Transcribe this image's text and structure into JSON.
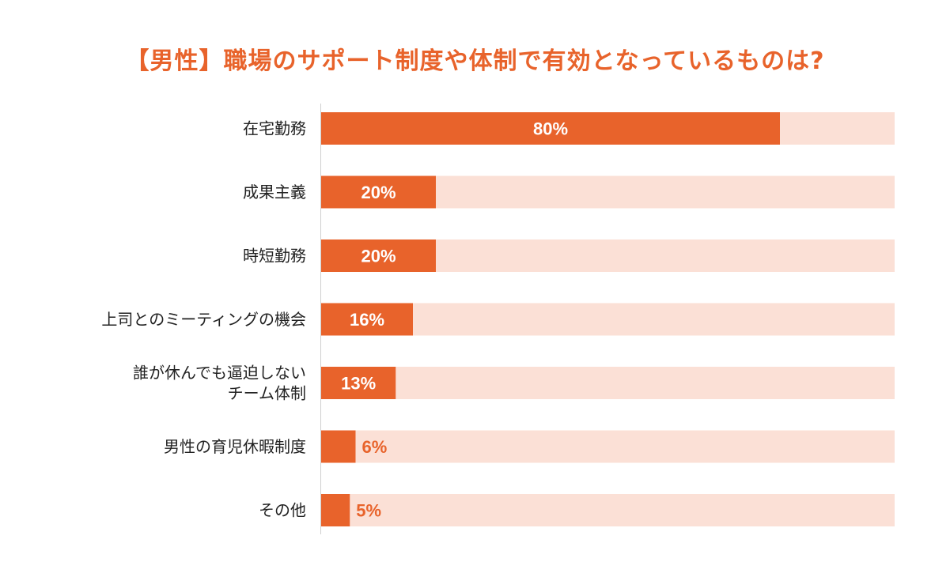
{
  "chart_data": {
    "type": "bar",
    "orientation": "horizontal",
    "title": "【男性】職場のサポート制度や体制で有効となっているものは?",
    "categories": [
      [
        "在宅勤務"
      ],
      [
        "成果主義"
      ],
      [
        "時短勤務"
      ],
      [
        "上司とのミーティングの機会"
      ],
      [
        "誰が休んでも逼迫しない",
        "チーム体制"
      ],
      [
        "男性の育児休暇制度"
      ],
      [
        "その他"
      ]
    ],
    "values": [
      80,
      20,
      20,
      16,
      13,
      6,
      5
    ],
    "value_labels": [
      "80%",
      "20%",
      "20%",
      "16%",
      "13%",
      "6%",
      "5%"
    ],
    "xlim": [
      0,
      100
    ],
    "grid": false,
    "legend": "none"
  },
  "colors": {
    "title": "#e8632b",
    "bar": "#e8632b",
    "track": "#fbe0d6",
    "axis_line": "#d0d0d0",
    "value_inside": "#ffffff",
    "value_outside": "#e8632b"
  }
}
